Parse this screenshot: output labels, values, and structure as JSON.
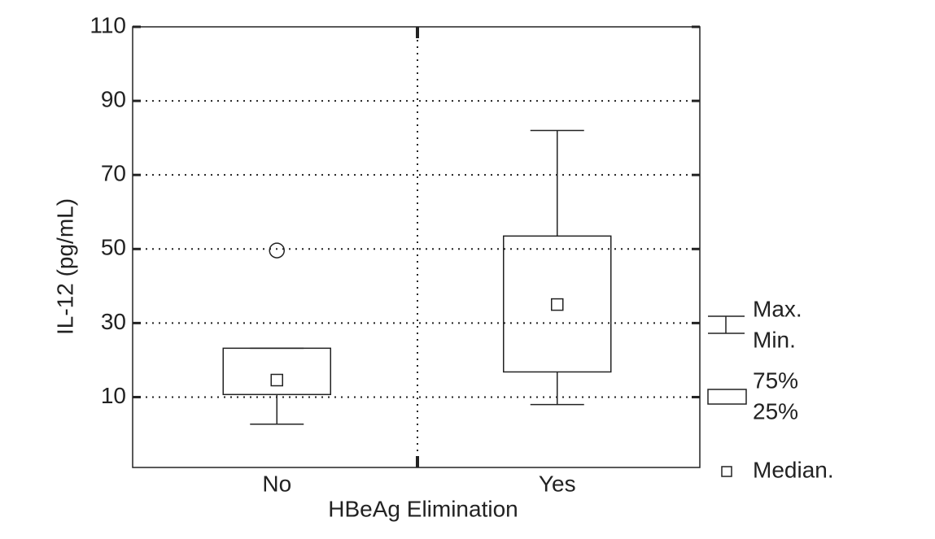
{
  "chart_data": {
    "type": "box",
    "x_label": "HBeAg Elimination",
    "y_label": "IL-12 (pg/mL)",
    "categories": [
      "No",
      "Yes"
    ],
    "boxes": [
      {
        "min": 2.7,
        "q1": 10.7,
        "median": 14.6,
        "q3": 23.2,
        "max": 23.2,
        "outliers": [
          49.6
        ]
      },
      {
        "min": 8,
        "q1": 16.8,
        "median": 35,
        "q3": 53.5,
        "max": 82,
        "outliers": []
      }
    ],
    "ylim": [
      -9,
      110
    ],
    "yticks": [
      10,
      30,
      50,
      70,
      90,
      110
    ],
    "grid": true,
    "color": "#222222",
    "legend": {
      "max": "Max.",
      "min": "Min.",
      "q3": "75%",
      "q1": "25%",
      "median": "Median."
    }
  }
}
